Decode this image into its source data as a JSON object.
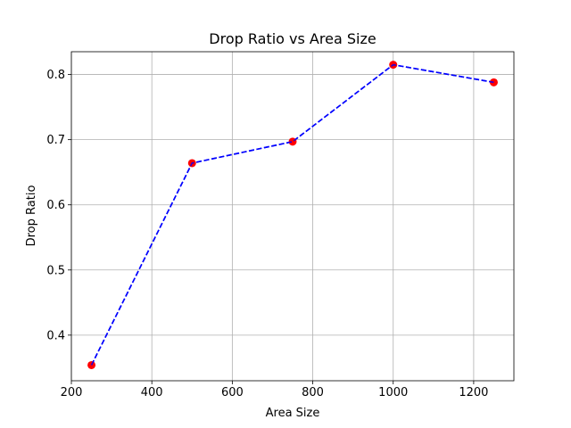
{
  "chart_data": {
    "type": "line",
    "title": "Drop Ratio vs Area Size",
    "xlabel": "Area Size",
    "ylabel": "Drop Ratio",
    "x": [
      250,
      500,
      750,
      1000,
      1250
    ],
    "series": [
      {
        "values": [
          0.354,
          0.664,
          0.697,
          0.815,
          0.788
        ],
        "line_color": "#0000ff",
        "line_style": "dashed",
        "marker_color": "#ff0000",
        "marker": "circle"
      }
    ],
    "xlim": [
      200,
      1300
    ],
    "ylim": [
      0.33,
      0.835
    ],
    "xticks": [
      200,
      400,
      600,
      800,
      1000,
      1200
    ],
    "yticks": [
      0.4,
      0.5,
      0.6,
      0.7,
      0.8
    ],
    "grid": true,
    "grid_color": "#b0b0b0"
  }
}
